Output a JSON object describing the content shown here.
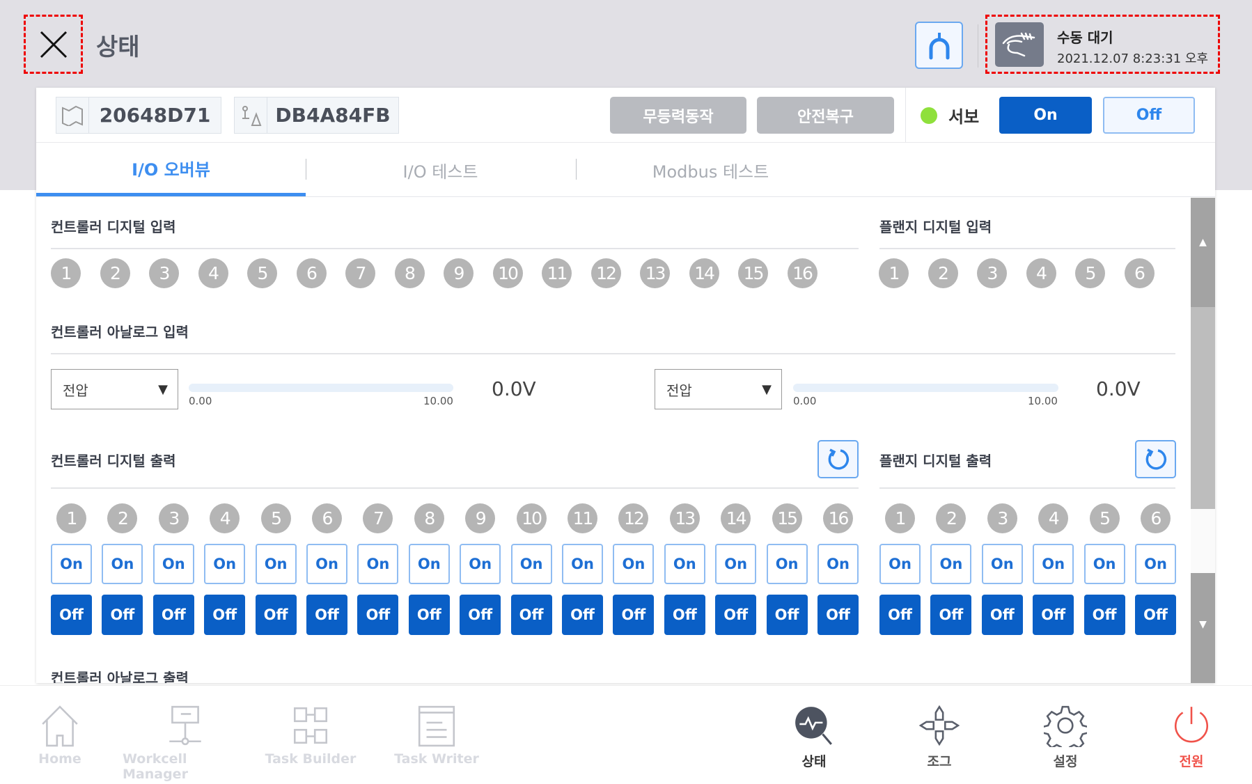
{
  "header": {
    "title": "상태",
    "status_title": "수동 대기",
    "status_time": "2021.12.07 8:23:31 오후"
  },
  "toolbar": {
    "chip1": "20648D71",
    "chip2": "DB4A84FB",
    "btn_direct_teach": "무등력동작",
    "btn_safety_recover": "안전복구",
    "servo_label": "서보",
    "servo_on": "On",
    "servo_off": "Off",
    "servo_status_color": "#8fe03c"
  },
  "tabs": [
    {
      "label": "I/O 오버뷰",
      "active": true
    },
    {
      "label": "I/O 테스트"
    },
    {
      "label": "Modbus 테스트"
    }
  ],
  "sections": {
    "ctrl_di": "컨트롤러 디지털 입력",
    "flange_di": "플랜지 디지털 입력",
    "ctrl_ai": "컨트롤러 아날로그 입력",
    "ctrl_do": "컨트롤러 디지털 출력",
    "flange_do": "플랜지 디지털 출력",
    "ctrl_ao": "컨트롤러 아날로그 출력"
  },
  "ctrl_di": [
    "1",
    "2",
    "3",
    "4",
    "5",
    "6",
    "7",
    "8",
    "9",
    "10",
    "11",
    "12",
    "13",
    "14",
    "15",
    "16"
  ],
  "flange_di": [
    "1",
    "2",
    "3",
    "4",
    "5",
    "6"
  ],
  "analog_inputs": [
    {
      "mode": "전압",
      "min": "0.00",
      "max": "10.00",
      "value": "0.0V",
      "level": 0
    },
    {
      "mode": "전압",
      "min": "0.00",
      "max": "10.00",
      "value": "0.0V",
      "level": 0
    }
  ],
  "ctrl_do": [
    "1",
    "2",
    "3",
    "4",
    "5",
    "6",
    "7",
    "8",
    "9",
    "10",
    "11",
    "12",
    "13",
    "14",
    "15",
    "16"
  ],
  "flange_do": [
    "1",
    "2",
    "3",
    "4",
    "5",
    "6"
  ],
  "output_labels": {
    "on": "On",
    "off": "Off"
  },
  "nav": [
    {
      "label": "Home",
      "icon": "home-icon",
      "state": "disabled"
    },
    {
      "label": "Workcell Manager",
      "icon": "workcell-icon",
      "state": "disabled"
    },
    {
      "label": "Task Builder",
      "icon": "task-builder-icon",
      "state": "disabled"
    },
    {
      "label": "Task Writer",
      "icon": "task-writer-icon",
      "state": "disabled"
    },
    {
      "label": "상태",
      "icon": "status-icon",
      "state": "active"
    },
    {
      "label": "조그",
      "icon": "jog-icon",
      "state": "normal"
    },
    {
      "label": "설정",
      "icon": "settings-icon",
      "state": "normal"
    },
    {
      "label": "전원",
      "icon": "power-icon",
      "state": "power"
    }
  ],
  "colors": {
    "accent": "#3d8ef0",
    "primary": "#0a5fc6",
    "power": "#f0524a"
  }
}
